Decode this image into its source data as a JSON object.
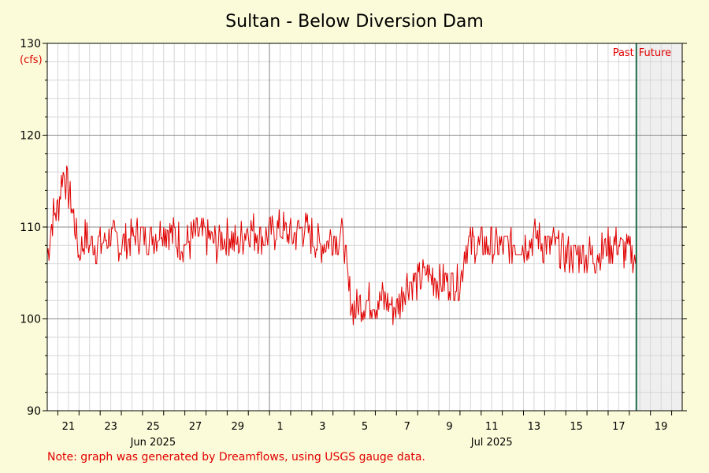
{
  "chart_data": {
    "type": "line",
    "title": "Sultan - Below Diversion Dam",
    "ylabel": "(cfs)",
    "ylim": [
      90,
      130
    ],
    "y_ticks": [
      90,
      100,
      110,
      120,
      130
    ],
    "x_start": "2025-06-20T12:00",
    "x_end": "2025-07-20T12:00",
    "now": "2025-07-18T08:00",
    "x_tick_labels": [
      {
        "label": "21",
        "date": "2025-06-21"
      },
      {
        "label": "23",
        "date": "2025-06-23"
      },
      {
        "label": "25",
        "date": "2025-06-25"
      },
      {
        "label": "27",
        "date": "2025-06-27"
      },
      {
        "label": "29",
        "date": "2025-06-29"
      },
      {
        "label": "1",
        "date": "2025-07-01"
      },
      {
        "label": "3",
        "date": "2025-07-03"
      },
      {
        "label": "5",
        "date": "2025-07-05"
      },
      {
        "label": "7",
        "date": "2025-07-07"
      },
      {
        "label": "9",
        "date": "2025-07-09"
      },
      {
        "label": "11",
        "date": "2025-07-11"
      },
      {
        "label": "13",
        "date": "2025-07-13"
      },
      {
        "label": "15",
        "date": "2025-07-15"
      },
      {
        "label": "17",
        "date": "2025-07-17"
      },
      {
        "label": "19",
        "date": "2025-07-19"
      }
    ],
    "month_labels": [
      {
        "label": "Jun 2025",
        "date": "2025-06-25"
      },
      {
        "label": "Jul 2025",
        "date": "2025-07-11"
      }
    ],
    "month_boundary": "2025-07-01",
    "past_label": "Past",
    "future_label": "Future",
    "grid": true,
    "series": [
      {
        "color": "#e00000",
        "points": [
          [
            "2025-06-20T12:00",
            107
          ],
          [
            "2025-06-20T18:00",
            111
          ],
          [
            "2025-06-21T00:00",
            112
          ],
          [
            "2025-06-21T06:00",
            116
          ],
          [
            "2025-06-21T12:00",
            114
          ],
          [
            "2025-06-21T18:00",
            111
          ],
          [
            "2025-06-22T00:00",
            107
          ],
          [
            "2025-06-22T06:00",
            109
          ],
          [
            "2025-06-22T12:00",
            108
          ],
          [
            "2025-06-23T00:00",
            108
          ],
          [
            "2025-06-23T12:00",
            109
          ],
          [
            "2025-06-24T00:00",
            108
          ],
          [
            "2025-06-24T12:00",
            109
          ],
          [
            "2025-06-25T00:00",
            109
          ],
          [
            "2025-06-25T12:00",
            109
          ],
          [
            "2025-06-26T00:00",
            110
          ],
          [
            "2025-06-26T12:00",
            109
          ],
          [
            "2025-06-27T00:00",
            108
          ],
          [
            "2025-06-27T12:00",
            109
          ],
          [
            "2025-06-28T00:00",
            109
          ],
          [
            "2025-06-28T12:00",
            108
          ],
          [
            "2025-06-29T00:00",
            109
          ],
          [
            "2025-06-29T12:00",
            108
          ],
          [
            "2025-06-30T00:00",
            110
          ],
          [
            "2025-06-30T12:00",
            109
          ],
          [
            "2025-07-01T00:00",
            109
          ],
          [
            "2025-07-01T12:00",
            110
          ],
          [
            "2025-07-02T00:00",
            109
          ],
          [
            "2025-07-02T12:00",
            110
          ],
          [
            "2025-07-03T00:00",
            109
          ],
          [
            "2025-07-03T12:00",
            108
          ],
          [
            "2025-07-04T00:00",
            109
          ],
          [
            "2025-07-04T12:00",
            109
          ],
          [
            "2025-07-04T18:00",
            103
          ],
          [
            "2025-07-05T00:00",
            101
          ],
          [
            "2025-07-05T12:00",
            102
          ],
          [
            "2025-07-06T00:00",
            102
          ],
          [
            "2025-07-06T12:00",
            102
          ],
          [
            "2025-07-07T00:00",
            101
          ],
          [
            "2025-07-07T12:00",
            104
          ],
          [
            "2025-07-08T00:00",
            104
          ],
          [
            "2025-07-08T12:00",
            105
          ],
          [
            "2025-07-09T00:00",
            104
          ],
          [
            "2025-07-09T12:00",
            104
          ],
          [
            "2025-07-10T00:00",
            104
          ],
          [
            "2025-07-10T06:00",
            108
          ],
          [
            "2025-07-10T12:00",
            108
          ],
          [
            "2025-07-11T00:00",
            108
          ],
          [
            "2025-07-11T12:00",
            108
          ],
          [
            "2025-07-12T00:00",
            108
          ],
          [
            "2025-07-12T12:00",
            108
          ],
          [
            "2025-07-13T00:00",
            108
          ],
          [
            "2025-07-13T12:00",
            109
          ],
          [
            "2025-07-14T00:00",
            108
          ],
          [
            "2025-07-14T12:00",
            108
          ],
          [
            "2025-07-15T00:00",
            107
          ],
          [
            "2025-07-15T12:00",
            107
          ],
          [
            "2025-07-16T00:00",
            107
          ],
          [
            "2025-07-16T12:00",
            107
          ],
          [
            "2025-07-17T00:00",
            108
          ],
          [
            "2025-07-17T12:00",
            108
          ],
          [
            "2025-07-18T00:00",
            107
          ],
          [
            "2025-07-18T08:00",
            107
          ]
        ]
      }
    ]
  },
  "note": "Note: graph was generated by Dreamflows, using USGS gauge data."
}
